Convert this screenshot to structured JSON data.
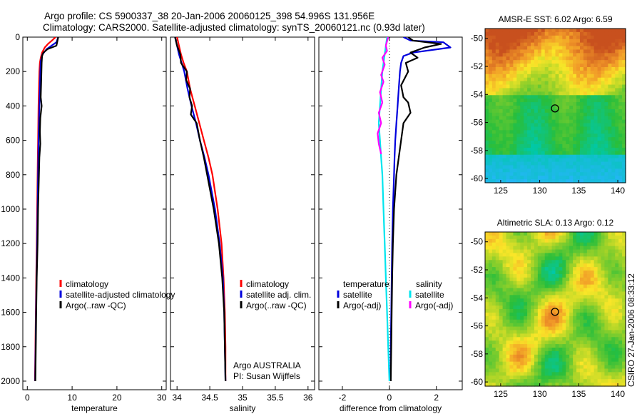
{
  "header": {
    "line1": "Argo profile: CS 5900337_38 20-Jan-2006 20060125_398 54.996S 131.956E",
    "line2": "Climatology: CARS2000. Satellite-adjusted climatology: synTS_20060121.nc (0.93d later)"
  },
  "side_note": "CSIRO 27-Jan-2006 08:33:12",
  "colors": {
    "climatology": "#ff0000",
    "satellite": "#0000dd",
    "argo": "#000000",
    "satellite_salinity": "#00e5ee",
    "argo_salinity": "#ff00ff"
  },
  "chart_data": [
    {
      "type": "line",
      "name": "temperature-profile",
      "xlabel": "temperature",
      "xlim": [
        -1,
        31
      ],
      "ylim": [
        2050,
        0
      ],
      "xticks": [
        0,
        10,
        20,
        30
      ],
      "yticks": [
        0,
        200,
        400,
        600,
        800,
        1000,
        1200,
        1400,
        1600,
        1800,
        2000
      ],
      "legend": [
        "climatology",
        "satellite-adjusted climatology",
        "Argo(..raw -QC)"
      ],
      "series": [
        {
          "name": "climatology",
          "color": "#ff0000",
          "points": [
            [
              6.3,
              0
            ],
            [
              5.5,
              20
            ],
            [
              4.6,
              40
            ],
            [
              3.9,
              60
            ],
            [
              3.3,
              90
            ],
            [
              3.0,
              120
            ],
            [
              2.8,
              150
            ],
            [
              2.7,
              200
            ],
            [
              2.6,
              300
            ],
            [
              2.5,
              400
            ],
            [
              2.45,
              500
            ],
            [
              2.4,
              600
            ],
            [
              2.35,
              700
            ],
            [
              2.3,
              800
            ],
            [
              2.2,
              1000
            ],
            [
              2.1,
              1200
            ],
            [
              2.0,
              1400
            ],
            [
              1.9,
              1600
            ],
            [
              1.8,
              1800
            ],
            [
              1.7,
              2000
            ]
          ]
        },
        {
          "name": "satellite-adjusted",
          "color": "#0000dd",
          "points": [
            [
              6.9,
              0
            ],
            [
              6.5,
              30
            ],
            [
              5.4,
              50
            ],
            [
              4.3,
              70
            ],
            [
              3.4,
              100
            ],
            [
              3.0,
              140
            ],
            [
              2.9,
              200
            ],
            [
              2.8,
              300
            ],
            [
              2.7,
              400
            ],
            [
              2.6,
              500
            ],
            [
              2.5,
              600
            ],
            [
              2.45,
              700
            ],
            [
              2.4,
              800
            ],
            [
              2.3,
              1000
            ],
            [
              2.2,
              1200
            ],
            [
              2.05,
              1400
            ],
            [
              1.95,
              1600
            ],
            [
              1.85,
              1800
            ],
            [
              1.75,
              2000
            ]
          ]
        },
        {
          "name": "Argo",
          "color": "#000000",
          "points": [
            [
              6.9,
              0
            ],
            [
              6.7,
              25
            ],
            [
              6.5,
              50
            ],
            [
              4.5,
              70
            ],
            [
              3.6,
              90
            ],
            [
              3.3,
              110
            ],
            [
              3.2,
              150
            ],
            [
              3.1,
              250
            ],
            [
              3.0,
              350
            ],
            [
              3.2,
              400
            ],
            [
              2.9,
              470
            ],
            [
              2.8,
              550
            ],
            [
              2.9,
              620
            ],
            [
              2.7,
              700
            ],
            [
              2.6,
              800
            ],
            [
              2.4,
              1000
            ],
            [
              2.3,
              1200
            ],
            [
              2.1,
              1400
            ],
            [
              2.0,
              1600
            ],
            [
              1.9,
              1800
            ],
            [
              1.8,
              2000
            ]
          ]
        }
      ]
    },
    {
      "type": "line",
      "name": "salinity-profile",
      "xlabel": "salinity",
      "xlim": [
        33.9,
        36.1
      ],
      "ylim": [
        2050,
        0
      ],
      "xticks": [
        34,
        34.5,
        35,
        35.5,
        36
      ],
      "legend": [
        "climatology",
        "satellite adj. clim.",
        "Argo(..raw -QC)"
      ],
      "annotations": [
        "Argo AUSTRALIA",
        "PI: Susan Wijffels"
      ],
      "series": [
        {
          "name": "climatology",
          "color": "#ff0000",
          "points": [
            [
              34.0,
              0
            ],
            [
              34.03,
              50
            ],
            [
              34.06,
              100
            ],
            [
              34.1,
              150
            ],
            [
              34.15,
              200
            ],
            [
              34.2,
              300
            ],
            [
              34.27,
              400
            ],
            [
              34.34,
              500
            ],
            [
              34.41,
              600
            ],
            [
              34.48,
              700
            ],
            [
              34.54,
              800
            ],
            [
              34.62,
              1000
            ],
            [
              34.68,
              1200
            ],
            [
              34.71,
              1400
            ],
            [
              34.73,
              1600
            ],
            [
              34.74,
              1800
            ],
            [
              34.74,
              2000
            ]
          ]
        },
        {
          "name": "satellite-adjusted",
          "color": "#0000dd",
          "points": [
            [
              33.97,
              0
            ],
            [
              34.0,
              50
            ],
            [
              34.03,
              100
            ],
            [
              34.07,
              150
            ],
            [
              34.11,
              200
            ],
            [
              34.16,
              300
            ],
            [
              34.22,
              400
            ],
            [
              34.29,
              500
            ],
            [
              34.35,
              600
            ],
            [
              34.42,
              700
            ],
            [
              34.48,
              800
            ],
            [
              34.58,
              1000
            ],
            [
              34.65,
              1200
            ],
            [
              34.7,
              1400
            ],
            [
              34.72,
              1600
            ],
            [
              34.73,
              1800
            ],
            [
              34.74,
              2000
            ]
          ]
        },
        {
          "name": "Argo",
          "color": "#000000",
          "points": [
            [
              33.97,
              0
            ],
            [
              34.0,
              50
            ],
            [
              34.05,
              100
            ],
            [
              34.06,
              150
            ],
            [
              34.15,
              200
            ],
            [
              34.14,
              250
            ],
            [
              34.2,
              300
            ],
            [
              34.19,
              350
            ],
            [
              34.23,
              400
            ],
            [
              34.21,
              450
            ],
            [
              34.3,
              500
            ],
            [
              34.35,
              600
            ],
            [
              34.41,
              700
            ],
            [
              34.46,
              800
            ],
            [
              34.56,
              1000
            ],
            [
              34.64,
              1200
            ],
            [
              34.69,
              1400
            ],
            [
              34.72,
              1600
            ],
            [
              34.73,
              1800
            ],
            [
              34.74,
              2000
            ]
          ]
        }
      ]
    },
    {
      "type": "line",
      "name": "difference-profile",
      "xlabel": "difference from climatology",
      "xlim": [
        -3,
        3.1
      ],
      "ylim": [
        2050,
        0
      ],
      "xticks": [
        -2,
        0,
        2
      ],
      "legend_groups": [
        {
          "title": "temperature",
          "items": [
            "satellite",
            "Argo(-adj)"
          ]
        },
        {
          "title": "salinity",
          "items": [
            "satellite",
            "Argo(-adj)"
          ]
        }
      ],
      "series": [
        {
          "name": "temperature satellite",
          "color": "#0000dd",
          "points": [
            [
              0.6,
              0
            ],
            [
              0.9,
              20
            ],
            [
              2.3,
              30
            ],
            [
              2.6,
              60
            ],
            [
              1.0,
              90
            ],
            [
              0.6,
              110
            ],
            [
              0.5,
              150
            ],
            [
              0.45,
              200
            ],
            [
              0.4,
              300
            ],
            [
              0.35,
              400
            ],
            [
              0.3,
              500
            ],
            [
              0.25,
              600
            ],
            [
              0.22,
              700
            ],
            [
              0.2,
              800
            ],
            [
              0.15,
              1000
            ],
            [
              0.12,
              1200
            ],
            [
              0.1,
              1400
            ],
            [
              0.08,
              1600
            ],
            [
              0.06,
              1800
            ],
            [
              0.05,
              2000
            ]
          ]
        },
        {
          "name": "temperature Argo",
          "color": "#000000",
          "points": [
            [
              0.8,
              0
            ],
            [
              1.0,
              20
            ],
            [
              2.2,
              40
            ],
            [
              1.5,
              60
            ],
            [
              0.9,
              90
            ],
            [
              1.2,
              120
            ],
            [
              0.7,
              150
            ],
            [
              0.8,
              200
            ],
            [
              0.5,
              280
            ],
            [
              0.6,
              350
            ],
            [
              0.8,
              380
            ],
            [
              0.9,
              440
            ],
            [
              0.6,
              500
            ],
            [
              0.5,
              600
            ],
            [
              0.4,
              700
            ],
            [
              0.3,
              800
            ],
            [
              0.2,
              1000
            ],
            [
              0.15,
              1200
            ],
            [
              0.12,
              1400
            ],
            [
              0.1,
              1600
            ],
            [
              0.08,
              1800
            ],
            [
              0.06,
              2000
            ]
          ]
        },
        {
          "name": "salinity satellite",
          "color": "#00e5ee",
          "points": [
            [
              -0.1,
              0
            ],
            [
              -0.2,
              100
            ],
            [
              -0.3,
              200
            ],
            [
              -0.35,
              300
            ],
            [
              -0.4,
              400
            ],
            [
              -0.45,
              500
            ],
            [
              -0.4,
              600
            ],
            [
              -0.35,
              700
            ],
            [
              -0.3,
              800
            ],
            [
              -0.25,
              1000
            ],
            [
              -0.2,
              1200
            ],
            [
              -0.15,
              1400
            ],
            [
              -0.1,
              1600
            ],
            [
              -0.05,
              1800
            ],
            [
              0.0,
              2000
            ]
          ]
        },
        {
          "name": "salinity Argo",
          "color": "#ff00ff",
          "points": [
            [
              -0.05,
              0
            ],
            [
              -0.15,
              50
            ],
            [
              -0.1,
              80
            ],
            [
              -0.3,
              120
            ],
            [
              -0.2,
              160
            ],
            [
              -0.35,
              220
            ],
            [
              -0.25,
              260
            ],
            [
              -0.4,
              320
            ],
            [
              -0.3,
              380
            ],
            [
              -0.45,
              440
            ],
            [
              -0.35,
              500
            ],
            [
              -0.5,
              560
            ],
            [
              -0.45,
              620
            ],
            [
              -0.35,
              680
            ]
          ]
        }
      ]
    },
    {
      "type": "heatmap",
      "name": "sst-map",
      "title": "AMSR-E SST: 6.02 Argo: 6.59",
      "xlim": [
        123,
        141
      ],
      "ylim": [
        -60.3,
        -49.3
      ],
      "xticks": [
        125,
        130,
        135,
        140
      ],
      "yticks": [
        -50,
        -52,
        -54,
        -56,
        -58,
        -60
      ],
      "marker": [
        131.956,
        -54.996
      ]
    },
    {
      "type": "heatmap",
      "name": "sla-map",
      "title": "Altimetric SLA: 0.13 Argo: 0.12",
      "xlim": [
        123,
        141
      ],
      "ylim": [
        -60.3,
        -49.3
      ],
      "xticks": [
        125,
        130,
        135,
        140
      ],
      "yticks": [
        -50,
        -52,
        -54,
        -56,
        -58,
        -60
      ],
      "marker": [
        131.956,
        -54.996
      ]
    }
  ]
}
